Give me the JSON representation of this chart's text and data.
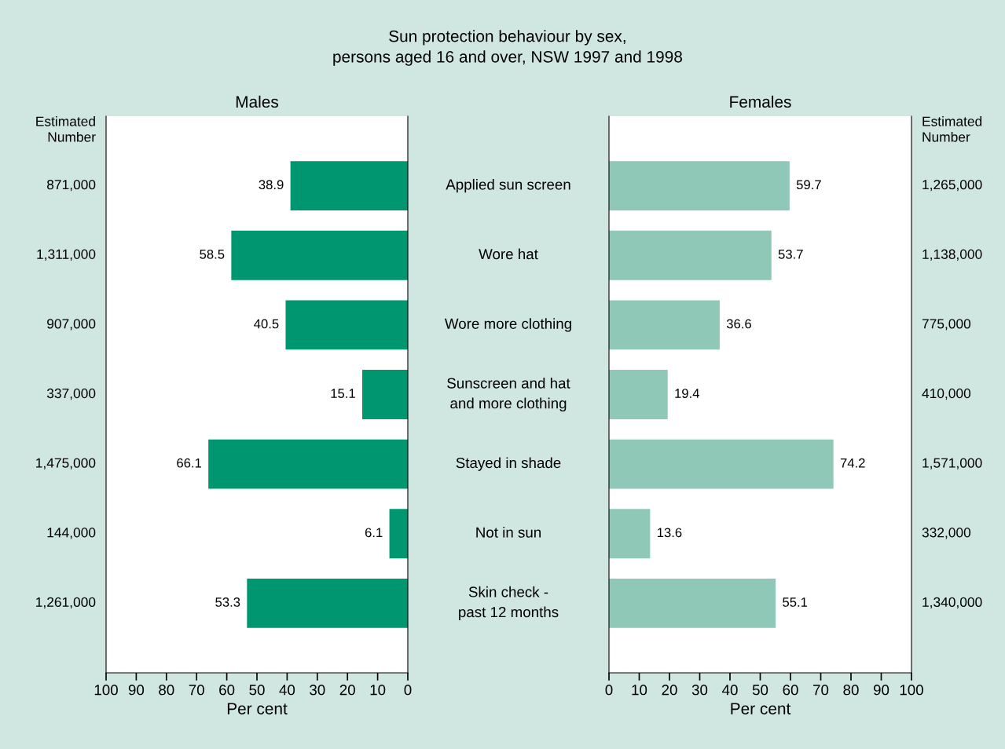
{
  "chart_data": [
    {
      "type": "other",
      "title": "Sun protection behaviour by sex,\npersons aged 16 and over, NSW 1997 and 1998"
    },
    {
      "type": "bar",
      "orientation": "horizontal",
      "title": "Males",
      "xlabel": "Per cent",
      "categories": [
        "Applied sun screen",
        "Wore hat",
        "Wore more clothing",
        "Sunscreen and hat\nand more clothing",
        "Stayed in shade",
        "Not in sun",
        "Skin check -\npast 12 months"
      ],
      "values": [
        38.9,
        58.5,
        40.5,
        15.1,
        66.1,
        6.1,
        53.3
      ],
      "color": "#009670",
      "data_labels": true,
      "xlim": [
        100,
        0
      ],
      "xticks": [
        100,
        90,
        80,
        70,
        60,
        50,
        40,
        30,
        20,
        10,
        0
      ],
      "grid": false,
      "legend": false,
      "annotations": [
        "Estimated\nNumber",
        "871,000",
        "1,311,000",
        "907,000",
        "337,000",
        "1,475,000",
        "144,000",
        "1,261,000"
      ]
    },
    {
      "type": "bar",
      "orientation": "horizontal",
      "title": "Females",
      "xlabel": "Per cent",
      "tick_labels": "x",
      "categories": [
        null,
        null,
        null,
        null,
        null,
        null,
        null
      ],
      "values": [
        59.7,
        53.7,
        36.6,
        19.4,
        74.2,
        13.6,
        55.1
      ],
      "color": "#90c8b8",
      "data_labels": true,
      "xlim": [
        0,
        100
      ],
      "xticks": [
        0,
        10,
        20,
        30,
        40,
        50,
        60,
        70,
        80,
        90,
        100
      ],
      "grid": false,
      "legend": false,
      "annotations": [
        "Estimated\nNumber",
        "1,265,000",
        "1,138,000",
        "775,000",
        "410,000",
        "1,571,000",
        "332,000",
        "1,340,000"
      ]
    }
  ]
}
